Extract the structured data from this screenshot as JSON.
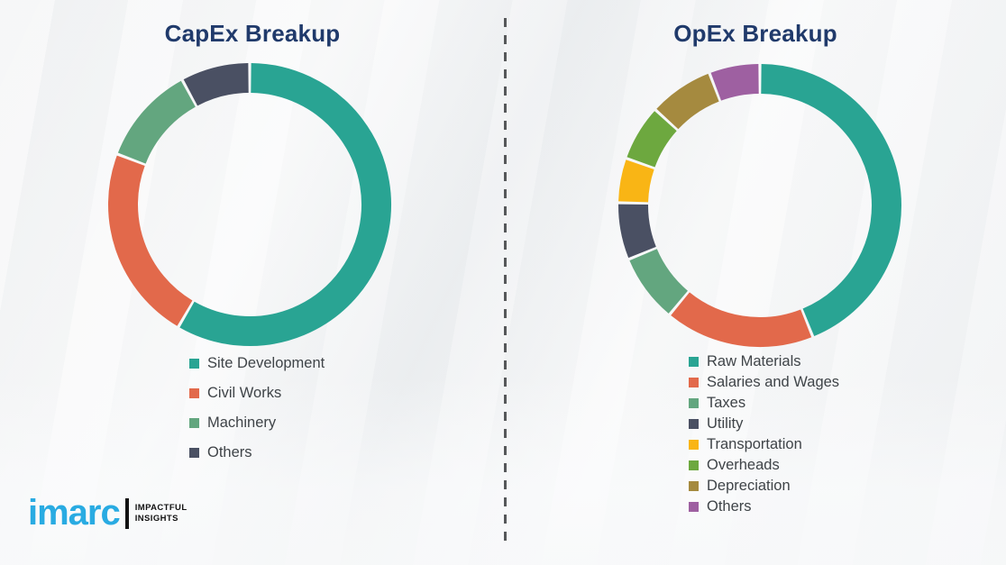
{
  "branding": {
    "logo_text": "imarc",
    "tagline_top": "IMPACTFUL",
    "tagline_bottom": "INSIGHTS",
    "logo_color": "#29abe2"
  },
  "divider": {
    "style": "vertical-dashed",
    "color": "#56585a"
  },
  "title_color": "#203a6b",
  "legend_text_color": "#3f4448",
  "chart_data": [
    {
      "type": "pie",
      "variant": "donut",
      "title": "CapEx Breakup",
      "categories": [
        "Site Development",
        "Civil Works",
        "Machinery",
        "Others"
      ],
      "values": [
        58.4,
        22.4,
        11.3,
        7.9
      ],
      "colors": [
        "#29a493",
        "#e2694b",
        "#63a67f",
        "#4a5063"
      ],
      "value_unit": "percent (estimated from arc angles, no data labels shown)",
      "start_angle_deg": 0,
      "direction": "clockwise",
      "legend_position": "below-left"
    },
    {
      "type": "pie",
      "variant": "donut",
      "title": "OpEx Breakup",
      "categories": [
        "Raw Materials",
        "Salaries and Wages",
        "Taxes",
        "Utility",
        "Transportation",
        "Overheads",
        "Depreciation",
        "Others"
      ],
      "values": [
        43.9,
        17.1,
        7.8,
        6.5,
        5.1,
        6.4,
        7.4,
        5.8
      ],
      "colors": [
        "#29a493",
        "#e2694b",
        "#63a67f",
        "#4a5063",
        "#f9b515",
        "#6da83f",
        "#a58a3f",
        "#9e60a1"
      ],
      "value_unit": "percent (estimated from arc angles, no data labels shown)",
      "start_angle_deg": 0,
      "direction": "clockwise",
      "legend_position": "below-left"
    }
  ]
}
